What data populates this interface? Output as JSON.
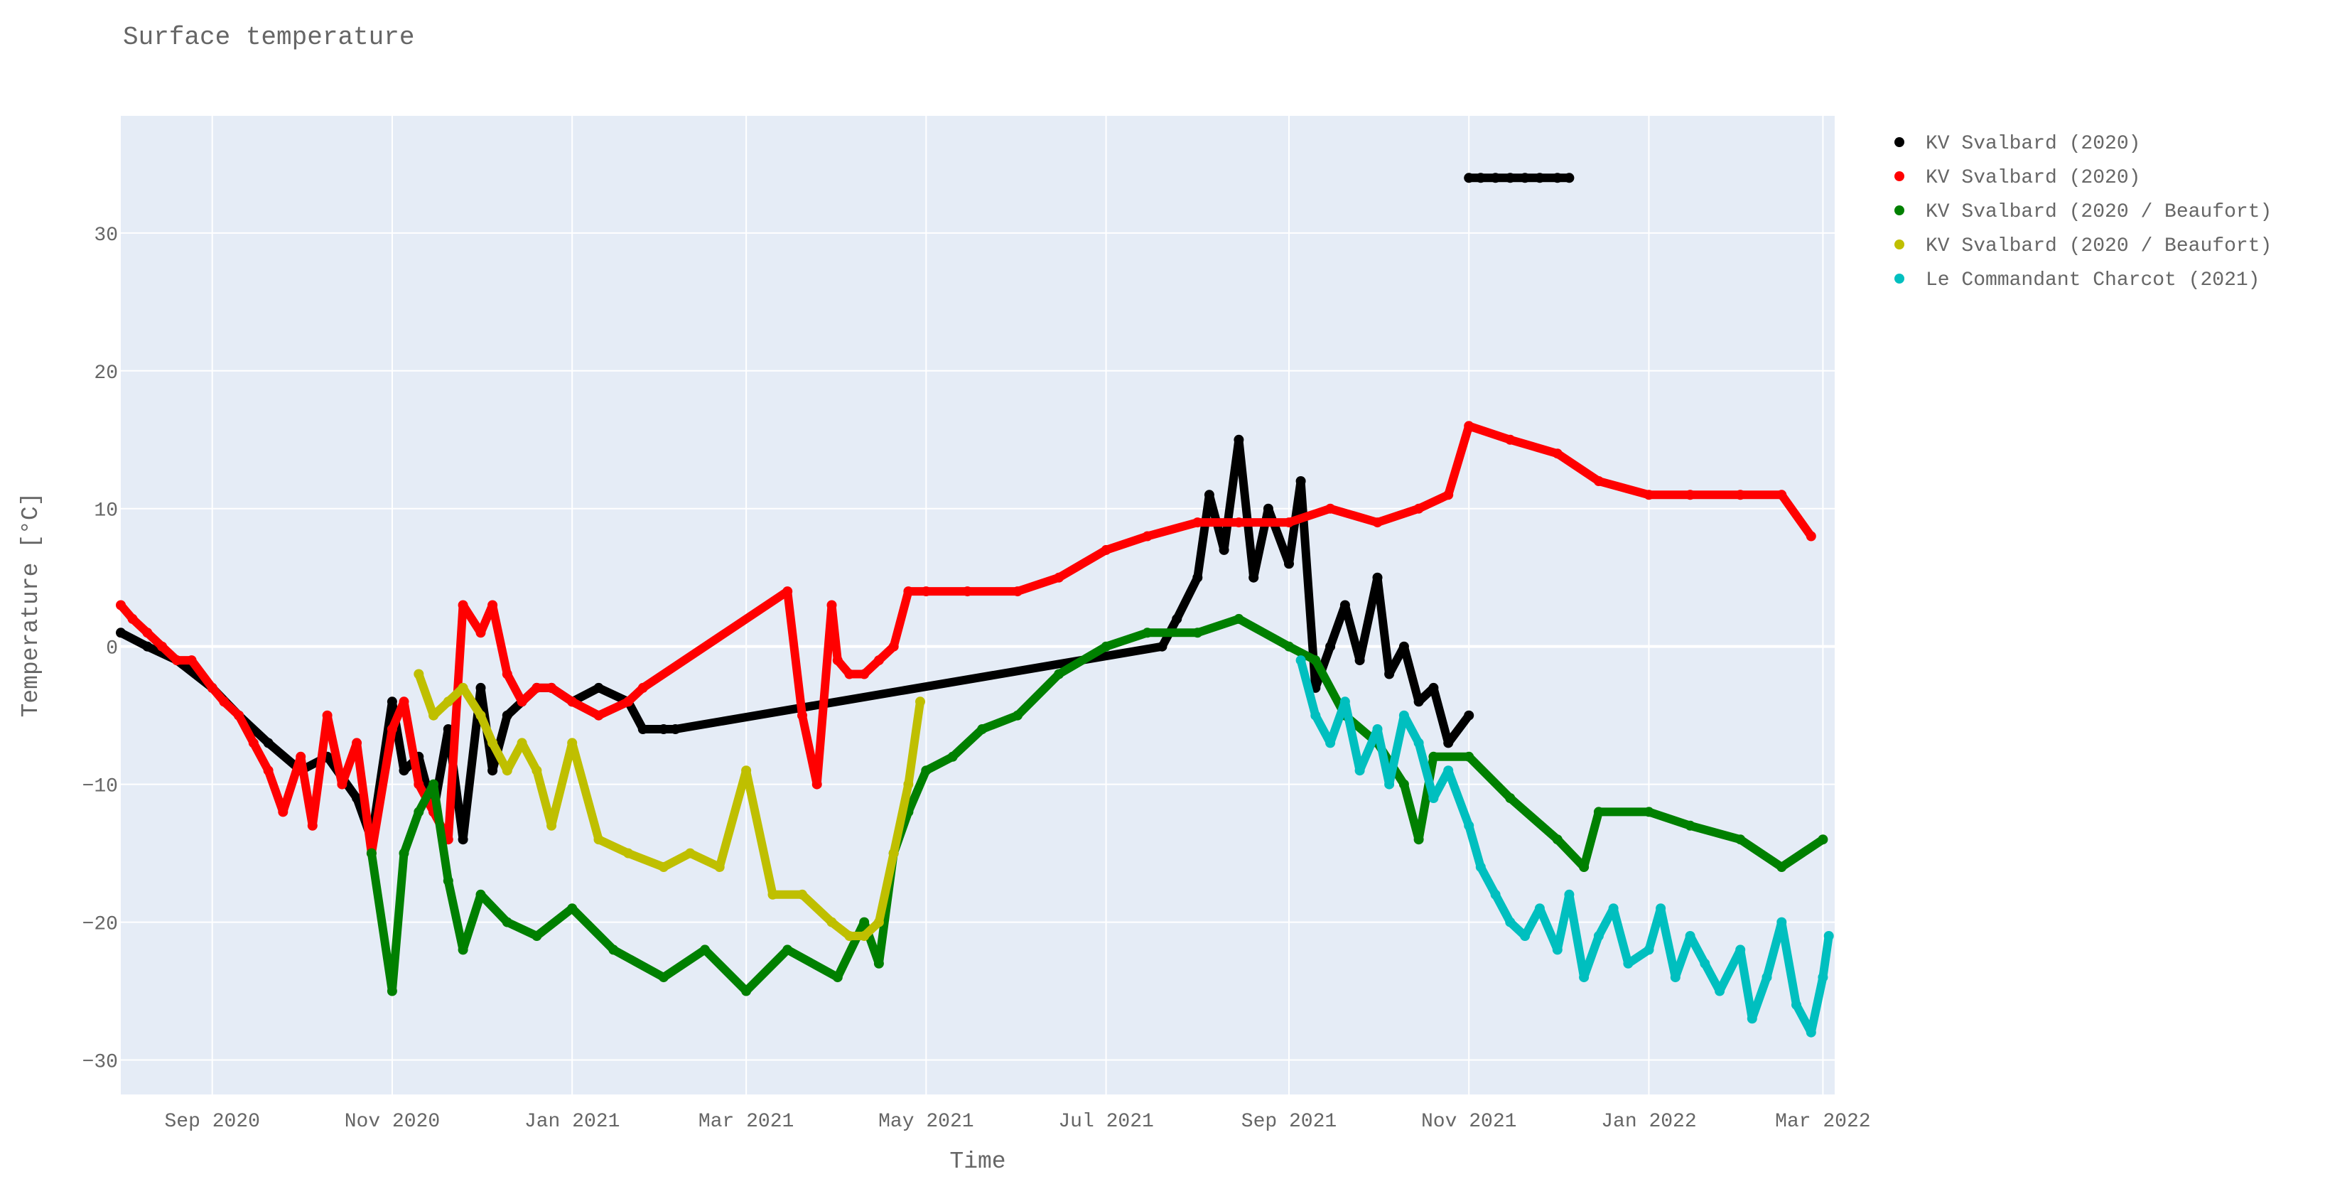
{
  "chart_data": {
    "type": "scatter",
    "title": "Surface temperature",
    "xlabel": "Time",
    "ylabel": "Temperature [°C]",
    "x_axis_type": "date",
    "xlim": [
      "2020-08-01",
      "2022-03-05"
    ],
    "ylim": [
      -32.5,
      38.5
    ],
    "x_ticks": [
      {
        "date": "2020-09-01",
        "label": "Sep 2020"
      },
      {
        "date": "2020-11-01",
        "label": "Nov 2020"
      },
      {
        "date": "2021-01-01",
        "label": "Jan 2021"
      },
      {
        "date": "2021-03-01",
        "label": "Mar 2021"
      },
      {
        "date": "2021-05-01",
        "label": "May 2021"
      },
      {
        "date": "2021-07-01",
        "label": "Jul 2021"
      },
      {
        "date": "2021-09-01",
        "label": "Sep 2021"
      },
      {
        "date": "2021-11-01",
        "label": "Nov 2021"
      },
      {
        "date": "2022-01-01",
        "label": "Jan 2022"
      },
      {
        "date": "2022-03-01",
        "label": "Mar 2022"
      }
    ],
    "y_ticks": [
      {
        "value": 30,
        "label": "30"
      },
      {
        "value": 20,
        "label": "20"
      },
      {
        "value": 10,
        "label": "10"
      },
      {
        "value": 0,
        "label": "0"
      },
      {
        "value": -10,
        "label": "−10"
      },
      {
        "value": -20,
        "label": "−20"
      },
      {
        "value": -30,
        "label": "−30"
      }
    ],
    "grid": true,
    "legend_position": "right",
    "plot_background": "#e5ecf6",
    "series": [
      {
        "name": "KV Svalbard (2020)",
        "color": "#000000",
        "x": [
          "2020-08-01",
          "2020-08-10",
          "2020-08-20",
          "2020-09-01",
          "2020-09-10",
          "2020-09-20",
          "2020-10-01",
          "2020-10-10",
          "2020-10-20",
          "2020-10-25",
          "2020-11-01",
          "2020-11-05",
          "2020-11-10",
          "2020-11-15",
          "2020-11-20",
          "2020-11-25",
          "2020-12-01",
          "2020-12-05",
          "2020-12-10",
          "2020-12-15",
          "2020-12-20",
          "2020-12-25",
          "2021-01-01",
          "2021-01-10",
          "2021-01-20",
          "2021-01-25",
          "2021-02-01",
          "2021-02-05",
          "2021-07-20",
          "2021-07-25",
          "2021-08-01",
          "2021-08-05",
          "2021-08-10",
          "2021-08-15",
          "2021-08-20",
          "2021-08-25",
          "2021-09-01",
          "2021-09-05",
          "2021-09-10",
          "2021-09-15",
          "2021-09-20",
          "2021-09-25",
          "2021-10-01",
          "2021-10-05",
          "2021-10-10",
          "2021-10-15",
          "2021-10-20",
          "2021-10-25",
          "2021-11-01"
        ],
        "y": [
          1,
          0,
          -1,
          -3,
          -5,
          -7,
          -9,
          -8,
          -11,
          -14,
          -4,
          -9,
          -8,
          -12,
          -6,
          -14,
          -3,
          -9,
          -5,
          -4,
          -3,
          -3,
          -4,
          -3,
          -4,
          -6,
          -6,
          -6,
          0,
          2,
          5,
          11,
          7,
          15,
          5,
          10,
          6,
          12,
          -3,
          0,
          3,
          -1,
          5,
          -2,
          0,
          -4,
          -3,
          -7,
          -5
        ]
      },
      {
        "name": "KV Svalbard (2020)",
        "color": "#ff0000",
        "x": [
          "2020-08-01",
          "2020-08-05",
          "2020-08-10",
          "2020-08-15",
          "2020-08-20",
          "2020-08-25",
          "2020-09-01",
          "2020-09-05",
          "2020-09-10",
          "2020-09-15",
          "2020-09-20",
          "2020-09-25",
          "2020-10-01",
          "2020-10-05",
          "2020-10-10",
          "2020-10-15",
          "2020-10-20",
          "2020-10-25",
          "2020-11-01",
          "2020-11-05",
          "2020-11-10",
          "2020-11-15",
          "2020-11-20",
          "2020-11-25",
          "2020-12-01",
          "2020-12-05",
          "2020-12-10",
          "2020-12-15",
          "2020-12-20",
          "2020-12-25",
          "2021-01-01",
          "2021-01-10",
          "2021-01-20",
          "2021-01-25",
          "2021-03-15",
          "2021-03-20",
          "2021-03-25",
          "2021-03-30",
          "2021-04-01",
          "2021-04-05",
          "2021-04-10",
          "2021-04-15",
          "2021-04-20",
          "2021-04-25",
          "2021-05-01",
          "2021-05-15",
          "2021-06-01",
          "2021-06-15",
          "2021-07-01",
          "2021-07-15",
          "2021-08-01",
          "2021-08-15",
          "2021-09-01",
          "2021-09-15",
          "2021-10-01",
          "2021-10-15",
          "2021-10-25",
          "2021-11-01",
          "2021-11-15",
          "2021-12-01",
          "2021-12-15",
          "2022-01-01",
          "2022-01-15",
          "2022-02-01",
          "2022-02-15",
          "2022-02-25"
        ],
        "y": [
          3,
          2,
          1,
          0,
          -1,
          -1,
          -3,
          -4,
          -5,
          -7,
          -9,
          -12,
          -8,
          -13,
          -5,
          -10,
          -7,
          -15,
          -6,
          -4,
          -10,
          -12,
          -14,
          3,
          1,
          3,
          -2,
          -4,
          -3,
          -3,
          -4,
          -5,
          -4,
          -3,
          4,
          -5,
          -10,
          3,
          -1,
          -2,
          -2,
          -1,
          0,
          4,
          4,
          4,
          4,
          5,
          7,
          8,
          9,
          9,
          9,
          10,
          9,
          10,
          11,
          16,
          15,
          14,
          12,
          11,
          11,
          11,
          11,
          8
        ]
      },
      {
        "name": "KV Svalbard (2020 / Beaufort)",
        "color": "#008000",
        "x": [
          "2020-10-25",
          "2020-11-01",
          "2020-11-05",
          "2020-11-10",
          "2020-11-15",
          "2020-11-20",
          "2020-11-25",
          "2020-12-01",
          "2020-12-10",
          "2020-12-20",
          "2021-01-01",
          "2021-01-15",
          "2021-02-01",
          "2021-02-15",
          "2021-03-01",
          "2021-03-15",
          "2021-04-01",
          "2021-04-10",
          "2021-04-15",
          "2021-04-20",
          "2021-04-25",
          "2021-05-01",
          "2021-05-10",
          "2021-05-20",
          "2021-06-01",
          "2021-06-15",
          "2021-07-01",
          "2021-07-15",
          "2021-08-01",
          "2021-08-15",
          "2021-09-01",
          "2021-09-10",
          "2021-09-20",
          "2021-10-01",
          "2021-10-10",
          "2021-10-15",
          "2021-10-20",
          "2021-11-01",
          "2021-11-15",
          "2021-12-01",
          "2021-12-10",
          "2021-12-15",
          "2022-01-01",
          "2022-01-15",
          "2022-02-01",
          "2022-02-15",
          "2022-03-01"
        ],
        "y": [
          -15,
          -25,
          -15,
          -12,
          -10,
          -17,
          -22,
          -18,
          -20,
          -21,
          -19,
          -22,
          -24,
          -22,
          -25,
          -22,
          -24,
          -20,
          -23,
          -15,
          -12,
          -9,
          -8,
          -6,
          -5,
          -2,
          0,
          1,
          1,
          2,
          0,
          -1,
          -5,
          -7,
          -10,
          -14,
          -8,
          -8,
          -11,
          -14,
          -16,
          -12,
          -12,
          -13,
          -14,
          -16,
          -14
        ]
      },
      {
        "name": "KV Svalbard (2020 / Beaufort)",
        "color": "#bfbf00",
        "x": [
          "2020-11-10",
          "2020-11-15",
          "2020-11-20",
          "2020-11-25",
          "2020-12-01",
          "2020-12-05",
          "2020-12-10",
          "2020-12-15",
          "2020-12-20",
          "2020-12-25",
          "2021-01-01",
          "2021-01-10",
          "2021-01-20",
          "2021-02-01",
          "2021-02-10",
          "2021-02-20",
          "2021-03-01",
          "2021-03-10",
          "2021-03-20",
          "2021-03-30",
          "2021-04-05",
          "2021-04-10",
          "2021-04-15",
          "2021-04-20",
          "2021-04-25",
          "2021-04-29"
        ],
        "y": [
          -2,
          -5,
          -4,
          -3,
          -5,
          -7,
          -9,
          -7,
          -9,
          -13,
          -7,
          -14,
          -15,
          -16,
          -15,
          -16,
          -9,
          -18,
          -18,
          -20,
          -21,
          -21,
          -20,
          -15,
          -10,
          -4
        ]
      },
      {
        "name": "Le Commandant Charcot (2021)",
        "color": "#00bfbf",
        "x": [
          "2021-09-05",
          "2021-09-10",
          "2021-09-15",
          "2021-09-20",
          "2021-09-25",
          "2021-10-01",
          "2021-10-05",
          "2021-10-10",
          "2021-10-15",
          "2021-10-20",
          "2021-10-25",
          "2021-11-01",
          "2021-11-05",
          "2021-11-10",
          "2021-11-15",
          "2021-11-20",
          "2021-11-25",
          "2021-12-01",
          "2021-12-05",
          "2021-12-10",
          "2021-12-15",
          "2021-12-20",
          "2021-12-25",
          "2022-01-01",
          "2022-01-05",
          "2022-01-10",
          "2022-01-15",
          "2022-01-20",
          "2022-01-25",
          "2022-02-01",
          "2022-02-05",
          "2022-02-10",
          "2022-02-15",
          "2022-02-20",
          "2022-02-25",
          "2022-03-01",
          "2022-03-03"
        ],
        "y": [
          -1,
          -5,
          -7,
          -4,
          -9,
          -6,
          -10,
          -5,
          -7,
          -11,
          -9,
          -13,
          -16,
          -18,
          -20,
          -21,
          -19,
          -22,
          -18,
          -24,
          -21,
          -19,
          -23,
          -22,
          -19,
          -24,
          -21,
          -23,
          -25,
          -22,
          -27,
          -24,
          -20,
          -26,
          -28,
          -24,
          -21
        ]
      },
      {
        "name": "",
        "color": "#000000",
        "legend": false,
        "x": [
          "2021-11-01",
          "2021-11-05",
          "2021-11-10",
          "2021-11-15",
          "2021-11-20",
          "2021-11-25",
          "2021-12-01",
          "2021-12-05"
        ],
        "y": [
          34,
          34,
          34,
          34,
          34,
          34,
          34,
          34
        ]
      }
    ]
  }
}
